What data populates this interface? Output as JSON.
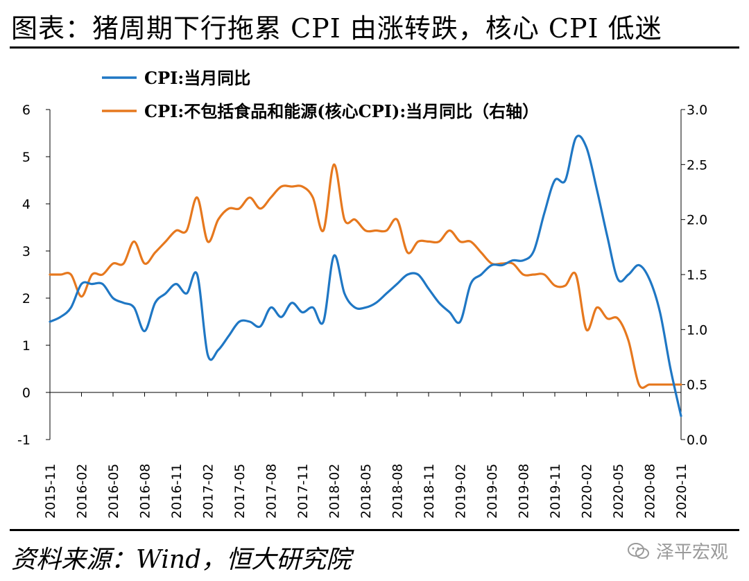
{
  "title": "图表：猪周期下行拖累 CPI 由涨转跌，核心 CPI 低迷",
  "source": "资料来源：Wind，恒大研究院",
  "watermark": "泽平宏观",
  "chart_data": {
    "type": "line",
    "x_ticks": [
      "2015-11",
      "2016-02",
      "2016-05",
      "2016-08",
      "2016-11",
      "2017-02",
      "2017-05",
      "2017-08",
      "2017-11",
      "2018-02",
      "2018-05",
      "2018-08",
      "2018-11",
      "2019-02",
      "2019-05",
      "2019-08",
      "2019-11",
      "2020-02",
      "2020-05",
      "2020-08",
      "2020-11"
    ],
    "y_left": {
      "min": -1,
      "max": 6,
      "ticks": [
        -1,
        0,
        1,
        2,
        3,
        4,
        5,
        6
      ],
      "tick_labels": [
        "-1",
        "0",
        "1",
        "2",
        "3",
        "4",
        "5",
        "6"
      ]
    },
    "y_right": {
      "min": 0.0,
      "max": 3.0,
      "ticks": [
        0,
        0.5,
        1,
        1.5,
        2,
        2.5,
        3
      ],
      "tick_labels": [
        "0.0",
        "0.5",
        "1.0",
        "1.5",
        "2.0",
        "2.5",
        "3.0"
      ]
    },
    "legend_position": "top-left",
    "series": [
      {
        "name": "CPI:当月同比",
        "axis": "left",
        "color": "#1f77c4",
        "x": [
          "2015-11",
          "2015-12",
          "2016-01",
          "2016-02",
          "2016-03",
          "2016-04",
          "2016-05",
          "2016-06",
          "2016-07",
          "2016-08",
          "2016-09",
          "2016-10",
          "2016-11",
          "2016-12",
          "2017-01",
          "2017-02",
          "2017-03",
          "2017-04",
          "2017-05",
          "2017-06",
          "2017-07",
          "2017-08",
          "2017-09",
          "2017-10",
          "2017-11",
          "2017-12",
          "2018-01",
          "2018-02",
          "2018-03",
          "2018-04",
          "2018-05",
          "2018-06",
          "2018-07",
          "2018-08",
          "2018-09",
          "2018-10",
          "2018-11",
          "2018-12",
          "2019-01",
          "2019-02",
          "2019-03",
          "2019-04",
          "2019-05",
          "2019-06",
          "2019-07",
          "2019-08",
          "2019-09",
          "2019-10",
          "2019-11",
          "2019-12",
          "2020-01",
          "2020-02",
          "2020-03",
          "2020-04",
          "2020-05",
          "2020-06",
          "2020-07",
          "2020-08",
          "2020-09",
          "2020-10",
          "2020-11"
        ],
        "values": [
          1.5,
          1.6,
          1.8,
          2.3,
          2.3,
          2.3,
          2.0,
          1.9,
          1.8,
          1.3,
          1.9,
          2.1,
          2.3,
          2.1,
          2.5,
          0.8,
          0.9,
          1.2,
          1.5,
          1.5,
          1.4,
          1.8,
          1.6,
          1.9,
          1.7,
          1.8,
          1.5,
          2.9,
          2.1,
          1.8,
          1.8,
          1.9,
          2.1,
          2.3,
          2.5,
          2.5,
          2.2,
          1.9,
          1.7,
          1.5,
          2.3,
          2.5,
          2.7,
          2.7,
          2.8,
          2.8,
          3.0,
          3.8,
          4.5,
          4.5,
          5.4,
          5.2,
          4.3,
          3.3,
          2.4,
          2.5,
          2.7,
          2.4,
          1.7,
          0.5,
          -0.5
        ]
      },
      {
        "name": "CPI:不包括食品和能源(核心CPI):当月同比（右轴）",
        "axis": "right",
        "color": "#e6781e",
        "x": [
          "2015-11",
          "2015-12",
          "2016-01",
          "2016-02",
          "2016-03",
          "2016-04",
          "2016-05",
          "2016-06",
          "2016-07",
          "2016-08",
          "2016-09",
          "2016-10",
          "2016-11",
          "2016-12",
          "2017-01",
          "2017-02",
          "2017-03",
          "2017-04",
          "2017-05",
          "2017-06",
          "2017-07",
          "2017-08",
          "2017-09",
          "2017-10",
          "2017-11",
          "2017-12",
          "2018-01",
          "2018-02",
          "2018-03",
          "2018-04",
          "2018-05",
          "2018-06",
          "2018-07",
          "2018-08",
          "2018-09",
          "2018-10",
          "2018-11",
          "2018-12",
          "2019-01",
          "2019-02",
          "2019-03",
          "2019-04",
          "2019-05",
          "2019-06",
          "2019-07",
          "2019-08",
          "2019-09",
          "2019-10",
          "2019-11",
          "2019-12",
          "2020-01",
          "2020-02",
          "2020-03",
          "2020-04",
          "2020-05",
          "2020-06",
          "2020-07",
          "2020-08",
          "2020-09",
          "2020-10",
          "2020-11"
        ],
        "values": [
          1.5,
          1.5,
          1.5,
          1.3,
          1.5,
          1.5,
          1.6,
          1.6,
          1.8,
          1.6,
          1.7,
          1.8,
          1.9,
          1.9,
          2.2,
          1.8,
          2.0,
          2.1,
          2.1,
          2.2,
          2.1,
          2.2,
          2.3,
          2.3,
          2.3,
          2.2,
          1.9,
          2.5,
          2.0,
          2.0,
          1.9,
          1.9,
          1.9,
          2.0,
          1.7,
          1.8,
          1.8,
          1.8,
          1.9,
          1.8,
          1.8,
          1.7,
          1.6,
          1.6,
          1.6,
          1.5,
          1.5,
          1.5,
          1.4,
          1.4,
          1.5,
          1.0,
          1.2,
          1.1,
          1.1,
          0.9,
          0.5,
          0.5,
          0.5,
          0.5,
          0.5
        ]
      }
    ]
  }
}
